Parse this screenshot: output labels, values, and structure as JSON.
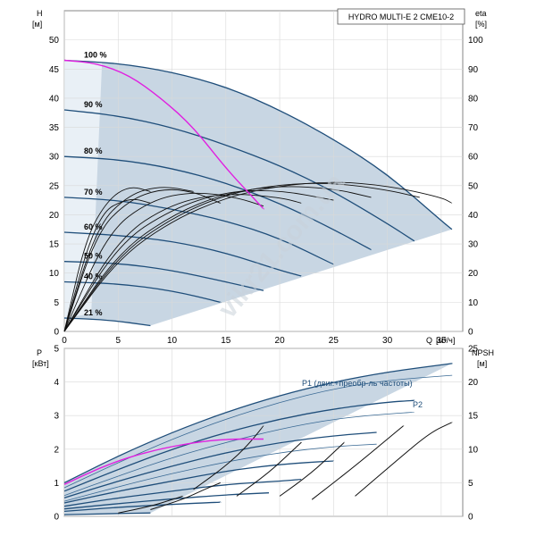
{
  "chart_data": [
    {
      "type": "line",
      "title": "HYDRO MULTI-E 2 CME10-2",
      "xlabel": "Q",
      "xunit": "[м³/ч]",
      "ylabel": "H",
      "yunit": "[м]",
      "y2label": "eta",
      "y2unit": "[%]",
      "xlim": [
        0,
        37
      ],
      "ylim": [
        0,
        55
      ],
      "y2lim": [
        0,
        110
      ],
      "xticks": [
        "0",
        "5",
        "10",
        "15",
        "20",
        "25",
        "30",
        "35"
      ],
      "yticks": [
        "0",
        "5",
        "10",
        "15",
        "20",
        "25",
        "30",
        "35",
        "40",
        "45",
        "50"
      ],
      "y2ticks": [
        "0",
        "10",
        "20",
        "30",
        "40",
        "50",
        "60",
        "70",
        "80",
        "90",
        "100"
      ],
      "grid": true,
      "speed_curves": [
        {
          "label": "100 %",
          "x": [
            0,
            5,
            10,
            15,
            20,
            25,
            30,
            35,
            36
          ],
          "y": [
            46.5,
            46,
            44.5,
            42,
            38,
            33,
            27,
            19,
            17.5
          ]
        },
        {
          "label": "90 %",
          "x": [
            0,
            5,
            10,
            15,
            20,
            25,
            30,
            32.5
          ],
          "y": [
            38,
            37,
            35,
            32,
            28.5,
            24,
            18.5,
            15.5
          ]
        },
        {
          "label": "80 %",
          "x": [
            0,
            5,
            10,
            15,
            20,
            25,
            28.5
          ],
          "y": [
            30,
            29.5,
            28,
            25.5,
            22,
            17.5,
            14
          ]
        },
        {
          "label": "70 %",
          "x": [
            0,
            5,
            10,
            15,
            20,
            25
          ],
          "y": [
            23,
            22.5,
            21,
            19,
            16,
            11.5
          ]
        },
        {
          "label": "60 %",
          "x": [
            0,
            5,
            10,
            15,
            20,
            22
          ],
          "y": [
            17,
            16.5,
            15.5,
            13.5,
            10.5,
            9.5
          ]
        },
        {
          "label": "50 %",
          "x": [
            0,
            5,
            10,
            15,
            18.5
          ],
          "y": [
            12,
            11.7,
            10.5,
            8.5,
            7
          ]
        },
        {
          "label": "40 %",
          "x": [
            0,
            5,
            10,
            14.5
          ],
          "y": [
            8.5,
            8.2,
            7,
            5
          ]
        },
        {
          "label": "21 %",
          "x": [
            0,
            4,
            8
          ],
          "y": [
            2.3,
            2.0,
            1.0
          ]
        }
      ],
      "max_power_curve": {
        "x": [
          0,
          3,
          6,
          9,
          12,
          15,
          17,
          18.5
        ],
        "y": [
          46.5,
          46,
          44,
          40,
          35,
          28,
          24,
          21
        ]
      },
      "efficiency_curves": [
        {
          "x": [
            0,
            5,
            10,
            15,
            20,
            25,
            30,
            35,
            36
          ],
          "y": [
            0,
            25,
            38,
            46,
            50,
            51.5,
            50,
            46,
            44
          ]
        },
        {
          "x": [
            0,
            5,
            10,
            15,
            20,
            25,
            30,
            33
          ],
          "y": [
            0,
            26,
            39,
            47,
            50.5,
            51,
            48.5,
            46
          ]
        },
        {
          "x": [
            0,
            5,
            10,
            15,
            20,
            25,
            28.5
          ],
          "y": [
            0,
            27,
            40,
            47.5,
            50,
            49,
            46
          ]
        },
        {
          "x": [
            0,
            5,
            10,
            15,
            20,
            25
          ],
          "y": [
            0,
            30,
            42,
            48,
            48.5,
            45
          ]
        },
        {
          "x": [
            0,
            5,
            10,
            15,
            20,
            22
          ],
          "y": [
            0,
            32,
            44,
            47.5,
            46,
            44
          ]
        },
        {
          "x": [
            0,
            4,
            8,
            12,
            16,
            18.5
          ],
          "y": [
            0,
            34,
            45,
            48,
            46,
            43
          ]
        },
        {
          "x": [
            0,
            3,
            6,
            9,
            12,
            14.5
          ],
          "y": [
            0,
            34,
            45,
            49,
            48,
            44
          ]
        },
        {
          "x": [
            0,
            3,
            6,
            9,
            12
          ],
          "y": [
            0,
            36,
            47,
            50,
            48
          ]
        },
        {
          "x": [
            0,
            3,
            6,
            8
          ],
          "y": [
            0,
            40,
            46,
            44
          ]
        },
        {
          "x": [
            0,
            2,
            4,
            6,
            8
          ],
          "y": [
            0,
            32,
            45,
            50,
            48
          ]
        }
      ]
    },
    {
      "type": "line",
      "xlabel": "Q",
      "xunit": "[м³/ч]",
      "ylabel": "P",
      "yunit": "[кВт]",
      "y2label": "NPSH",
      "y2unit": "[м]",
      "xlim": [
        0,
        37
      ],
      "ylim": [
        0,
        5
      ],
      "y2lim": [
        0,
        25
      ],
      "yticks": [
        "0",
        "1",
        "2",
        "3",
        "4",
        "5"
      ],
      "y2ticks": [
        "0",
        "5",
        "10",
        "15",
        "20",
        "25"
      ],
      "grid": true,
      "curve_labels": [
        "P1 (двиг.+преобр-ль частоты)",
        "P2"
      ],
      "p1_curves": [
        {
          "x": [
            0,
            5,
            10,
            15,
            20,
            25,
            30,
            36
          ],
          "y": [
            1.0,
            1.8,
            2.5,
            3.1,
            3.6,
            4.0,
            4.3,
            4.55
          ]
        },
        {
          "x": [
            0,
            5,
            10,
            15,
            20,
            25,
            30,
            32.5
          ],
          "y": [
            0.75,
            1.4,
            2.0,
            2.5,
            2.9,
            3.2,
            3.4,
            3.45
          ]
        },
        {
          "x": [
            0,
            5,
            10,
            15,
            20,
            25,
            29
          ],
          "y": [
            0.55,
            1.05,
            1.5,
            1.9,
            2.2,
            2.4,
            2.5
          ]
        },
        {
          "x": [
            0,
            5,
            10,
            15,
            20,
            25
          ],
          "y": [
            0.4,
            0.75,
            1.05,
            1.35,
            1.55,
            1.65
          ]
        },
        {
          "x": [
            0,
            5,
            10,
            15,
            20,
            22
          ],
          "y": [
            0.3,
            0.55,
            0.75,
            0.95,
            1.05,
            1.1
          ]
        },
        {
          "x": [
            0,
            5,
            10,
            15,
            19
          ],
          "y": [
            0.22,
            0.38,
            0.52,
            0.64,
            0.7
          ]
        },
        {
          "x": [
            0,
            5,
            10,
            14.5
          ],
          "y": [
            0.15,
            0.27,
            0.36,
            0.42
          ]
        },
        {
          "x": [
            0,
            4,
            8
          ],
          "y": [
            0.05,
            0.08,
            0.1
          ]
        }
      ],
      "p2_curves": [
        {
          "x": [
            0,
            5,
            10,
            15,
            20,
            25,
            30,
            36
          ],
          "y": [
            0.85,
            1.6,
            2.3,
            2.9,
            3.4,
            3.8,
            4.05,
            4.2
          ]
        },
        {
          "x": [
            0,
            5,
            10,
            15,
            20,
            25,
            30,
            32.5
          ],
          "y": [
            0.62,
            1.2,
            1.75,
            2.2,
            2.6,
            2.9,
            3.05,
            3.1
          ]
        },
        {
          "x": [
            0,
            5,
            10,
            15,
            20,
            25,
            29
          ],
          "y": [
            0.45,
            0.88,
            1.28,
            1.62,
            1.9,
            2.08,
            2.15
          ]
        }
      ],
      "max_power_curve": {
        "x": [
          0,
          4,
          8,
          12,
          15,
          18.5
        ],
        "y": [
          0.95,
          1.55,
          1.95,
          2.2,
          2.3,
          2.3
        ]
      },
      "npsh_curves": [
        {
          "x": [
            12,
            15,
            17,
            18.5
          ],
          "y": [
            4,
            7.5,
            10.5,
            13.5
          ]
        },
        {
          "x": [
            16,
            19,
            21,
            22
          ],
          "y": [
            3,
            6.5,
            9.5,
            11
          ]
        },
        {
          "x": [
            20,
            23,
            25,
            26
          ],
          "y": [
            3,
            6.5,
            9.5,
            11
          ]
        },
        {
          "x": [
            23,
            27,
            30,
            31.5
          ],
          "y": [
            2.5,
            7.5,
            11.5,
            13.5
          ]
        },
        {
          "x": [
            27,
            31,
            34,
            36
          ],
          "y": [
            3,
            8.5,
            12.5,
            14
          ]
        },
        {
          "x": [
            8,
            11,
            13,
            14.5
          ],
          "y": [
            1,
            2.5,
            4,
            5
          ]
        },
        {
          "x": [
            5,
            8,
            10,
            11
          ],
          "y": [
            0.5,
            1.5,
            2.5,
            3
          ]
        }
      ]
    }
  ],
  "watermark": "vikr21.com.ua"
}
